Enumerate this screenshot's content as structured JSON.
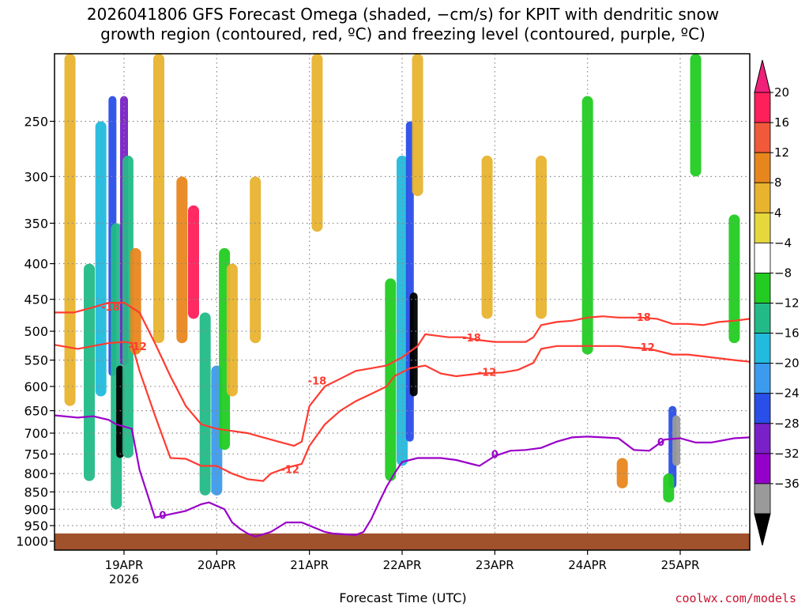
{
  "chart_data": {
    "type": "heatmap",
    "title_line1": "2026041806 GFS Forecast Omega (shaded, −cm/s) for KPIT with dendritic snow",
    "title_line2": "growth region (contoured, red, ºC) and freezing level (contoured, purple, ºC)",
    "xlabel": "Forecast Time (UTC)",
    "credit": "coolwx.com/models",
    "x_range_hours": [
      0,
      180
    ],
    "y_range_hpa": [
      200,
      1000
    ],
    "y_ticks": [
      250,
      300,
      350,
      400,
      450,
      500,
      550,
      600,
      650,
      700,
      750,
      800,
      850,
      900,
      950,
      1000
    ],
    "x_ticks": [
      {
        "label": "19APR",
        "sub": "2026",
        "hour": 18
      },
      {
        "label": "20APR",
        "sub": "",
        "hour": 42
      },
      {
        "label": "21APR",
        "sub": "",
        "hour": 66
      },
      {
        "label": "22APR",
        "sub": "",
        "hour": 90
      },
      {
        "label": "23APR",
        "sub": "",
        "hour": 114
      },
      {
        "label": "24APR",
        "sub": "",
        "hour": 138
      },
      {
        "label": "25APR",
        "sub": "",
        "hour": 162
      }
    ],
    "colorbar": {
      "levels": [
        "20",
        "16",
        "12",
        "8",
        "4",
        "−4",
        "−8",
        "−12",
        "−16",
        "−20",
        "−24",
        "−28",
        "−32",
        "−36"
      ],
      "colors": [
        "#ff1f5a",
        "#f05a3a",
        "#e8861e",
        "#e8b32e",
        "#e6d83c",
        "#ffffff",
        "#22cc22",
        "#22bb88",
        "#22bbdd",
        "#3b9bef",
        "#2a4ee8",
        "#7a20c8",
        "#9400c8",
        "#9a9a9a",
        "#000000"
      ],
      "top_arrow_color": "#f0207a",
      "bottom_arrow_color": "#000000"
    },
    "contours": [
      {
        "name": "dgz-upper-18",
        "level": "-18",
        "color": "#ff3b30",
        "points": [
          [
            0,
            470
          ],
          [
            5,
            470
          ],
          [
            10,
            462
          ],
          [
            14,
            455
          ],
          [
            18,
            455
          ],
          [
            22,
            470
          ],
          [
            26,
            520
          ],
          [
            30,
            580
          ],
          [
            34,
            640
          ],
          [
            38,
            680
          ],
          [
            42,
            690
          ],
          [
            46,
            695
          ],
          [
            50,
            700
          ],
          [
            54,
            710
          ],
          [
            58,
            720
          ],
          [
            62,
            730
          ],
          [
            64,
            720
          ],
          [
            66,
            640
          ],
          [
            70,
            600
          ],
          [
            74,
            585
          ],
          [
            78,
            570
          ],
          [
            82,
            565
          ],
          [
            86,
            560
          ],
          [
            90,
            545
          ],
          [
            94,
            525
          ],
          [
            96,
            505
          ],
          [
            102,
            510
          ],
          [
            106,
            510
          ],
          [
            110,
            515
          ],
          [
            114,
            518
          ],
          [
            118,
            518
          ],
          [
            122,
            518
          ],
          [
            124,
            510
          ],
          [
            126,
            490
          ],
          [
            130,
            485
          ],
          [
            134,
            483
          ],
          [
            138,
            478
          ],
          [
            142,
            476
          ],
          [
            146,
            478
          ],
          [
            152,
            478
          ],
          [
            156,
            480
          ],
          [
            160,
            488
          ],
          [
            164,
            488
          ],
          [
            168,
            490
          ],
          [
            172,
            485
          ],
          [
            176,
            483
          ],
          [
            180,
            480
          ]
        ],
        "labels": [
          {
            "text": "-18",
            "hour": 14.5,
            "hpa": 462
          },
          {
            "text": "-18",
            "hour": 68,
            "hpa": 590
          },
          {
            "text": "-18",
            "hour": 108,
            "hpa": 512
          },
          {
            "text": "-18",
            "hour": 152,
            "hpa": 478
          }
        ]
      },
      {
        "name": "dgz-lower-12",
        "level": "-12",
        "color": "#ff3b30",
        "points": [
          [
            0,
            523
          ],
          [
            6,
            530
          ],
          [
            10,
            525
          ],
          [
            14,
            520
          ],
          [
            18,
            518
          ],
          [
            20,
            520
          ],
          [
            22,
            570
          ],
          [
            26,
            660
          ],
          [
            30,
            760
          ],
          [
            34,
            762
          ],
          [
            38,
            780
          ],
          [
            42,
            780
          ],
          [
            46,
            800
          ],
          [
            50,
            815
          ],
          [
            54,
            820
          ],
          [
            56,
            800
          ],
          [
            60,
            785
          ],
          [
            64,
            775
          ],
          [
            66,
            730
          ],
          [
            70,
            680
          ],
          [
            74,
            650
          ],
          [
            78,
            630
          ],
          [
            82,
            615
          ],
          [
            86,
            600
          ],
          [
            88,
            580
          ],
          [
            92,
            565
          ],
          [
            96,
            560
          ],
          [
            100,
            575
          ],
          [
            104,
            580
          ],
          [
            110,
            575
          ],
          [
            116,
            573
          ],
          [
            120,
            568
          ],
          [
            124,
            555
          ],
          [
            126,
            530
          ],
          [
            130,
            525
          ],
          [
            138,
            525
          ],
          [
            146,
            525
          ],
          [
            150,
            528
          ],
          [
            154,
            530
          ],
          [
            160,
            540
          ],
          [
            164,
            540
          ],
          [
            170,
            545
          ],
          [
            176,
            550
          ],
          [
            180,
            553
          ]
        ],
        "labels": [
          {
            "text": "-12",
            "hour": 21.5,
            "hpa": 527
          },
          {
            "text": "-12",
            "hour": 61,
            "hpa": 790
          },
          {
            "text": "-12",
            "hour": 112,
            "hpa": 573
          },
          {
            "text": "-12",
            "hour": 153,
            "hpa": 528
          }
        ]
      },
      {
        "name": "freezing-level-0",
        "level": "0",
        "color": "#9a00c8",
        "points": [
          [
            0,
            660
          ],
          [
            6,
            665
          ],
          [
            10,
            662
          ],
          [
            14,
            670
          ],
          [
            16,
            680
          ],
          [
            20,
            690
          ],
          [
            22,
            790
          ],
          [
            26,
            925
          ],
          [
            30,
            915
          ],
          [
            34,
            905
          ],
          [
            38,
            885
          ],
          [
            40,
            880
          ],
          [
            44,
            900
          ],
          [
            46,
            940
          ],
          [
            48,
            960
          ],
          [
            50,
            975
          ],
          [
            52,
            985
          ],
          [
            56,
            970
          ],
          [
            60,
            940
          ],
          [
            64,
            940
          ],
          [
            68,
            960
          ],
          [
            70,
            970
          ],
          [
            72,
            975
          ],
          [
            78,
            980
          ],
          [
            80,
            970
          ],
          [
            82,
            930
          ],
          [
            84,
            880
          ],
          [
            86,
            835
          ],
          [
            88,
            800
          ],
          [
            90,
            770
          ],
          [
            94,
            760
          ],
          [
            96,
            760
          ],
          [
            100,
            760
          ],
          [
            104,
            765
          ],
          [
            108,
            775
          ],
          [
            110,
            780
          ],
          [
            114,
            755
          ],
          [
            118,
            742
          ],
          [
            122,
            740
          ],
          [
            126,
            735
          ],
          [
            130,
            720
          ],
          [
            134,
            710
          ],
          [
            138,
            708
          ],
          [
            142,
            710
          ],
          [
            146,
            712
          ],
          [
            150,
            740
          ],
          [
            154,
            742
          ],
          [
            158,
            715
          ],
          [
            162,
            712
          ],
          [
            166,
            722
          ],
          [
            170,
            722
          ],
          [
            176,
            712
          ],
          [
            180,
            710
          ]
        ],
        "labels": [
          {
            "text": "0",
            "hour": 28,
            "hpa": 920
          },
          {
            "text": "0",
            "hour": 114,
            "hpa": 752
          },
          {
            "text": "0",
            "hour": 157,
            "hpa": 722
          }
        ]
      }
    ],
    "omega_regions": [
      {
        "hour": 4,
        "hpa": [
          200,
          640
        ],
        "value": 6
      },
      {
        "hour": 9,
        "hpa": [
          400,
          820
        ],
        "value": -8
      },
      {
        "hour": 12,
        "hpa": [
          250,
          620
        ],
        "value": -14
      },
      {
        "hour": 15,
        "hpa": [
          230,
          580
        ],
        "value": -20
      },
      {
        "hour": 16,
        "hpa": [
          350,
          900
        ],
        "value": -10
      },
      {
        "hour": 18,
        "hpa": [
          230,
          560
        ],
        "value": -24
      },
      {
        "hour": 17,
        "hpa": [
          560,
          760
        ],
        "value": -36
      },
      {
        "hour": 19,
        "hpa": [
          280,
          760
        ],
        "value": -8
      },
      {
        "hour": 21,
        "hpa": [
          380,
          540
        ],
        "value": 10
      },
      {
        "hour": 27,
        "hpa": [
          200,
          520
        ],
        "value": 6
      },
      {
        "hour": 33,
        "hpa": [
          300,
          520
        ],
        "value": 10
      },
      {
        "hour": 36,
        "hpa": [
          330,
          480
        ],
        "value": 18
      },
      {
        "hour": 39,
        "hpa": [
          470,
          860
        ],
        "value": -10
      },
      {
        "hour": 42,
        "hpa": [
          560,
          860
        ],
        "value": -16
      },
      {
        "hour": 44,
        "hpa": [
          380,
          740
        ],
        "value": -6
      },
      {
        "hour": 46,
        "hpa": [
          400,
          620
        ],
        "value": 6
      },
      {
        "hour": 52,
        "hpa": [
          300,
          520
        ],
        "value": 5
      },
      {
        "hour": 68,
        "hpa": [
          200,
          360
        ],
        "value": 5
      },
      {
        "hour": 87,
        "hpa": [
          420,
          820
        ],
        "value": -6
      },
      {
        "hour": 90,
        "hpa": [
          280,
          780
        ],
        "value": -12
      },
      {
        "hour": 92,
        "hpa": [
          250,
          720
        ],
        "value": -20
      },
      {
        "hour": 93,
        "hpa": [
          440,
          620
        ],
        "value": -36
      },
      {
        "hour": 94,
        "hpa": [
          200,
          320
        ],
        "value": 6
      },
      {
        "hour": 112,
        "hpa": [
          280,
          480
        ],
        "value": 6
      },
      {
        "hour": 126,
        "hpa": [
          280,
          480
        ],
        "value": 5
      },
      {
        "hour": 138,
        "hpa": [
          230,
          540
        ],
        "value": -6
      },
      {
        "hour": 160,
        "hpa": [
          640,
          840
        ],
        "value": -20
      },
      {
        "hour": 161,
        "hpa": [
          660,
          780
        ],
        "value": -32
      },
      {
        "hour": 159,
        "hpa": [
          800,
          880
        ],
        "value": -6
      },
      {
        "hour": 147,
        "hpa": [
          760,
          840
        ],
        "value": 10
      },
      {
        "hour": 166,
        "hpa": [
          200,
          300
        ],
        "value": -6
      },
      {
        "hour": 176,
        "hpa": [
          340,
          520
        ],
        "value": -6
      }
    ],
    "ground": {
      "hpa_top": 975,
      "color": "#a0522d"
    }
  }
}
